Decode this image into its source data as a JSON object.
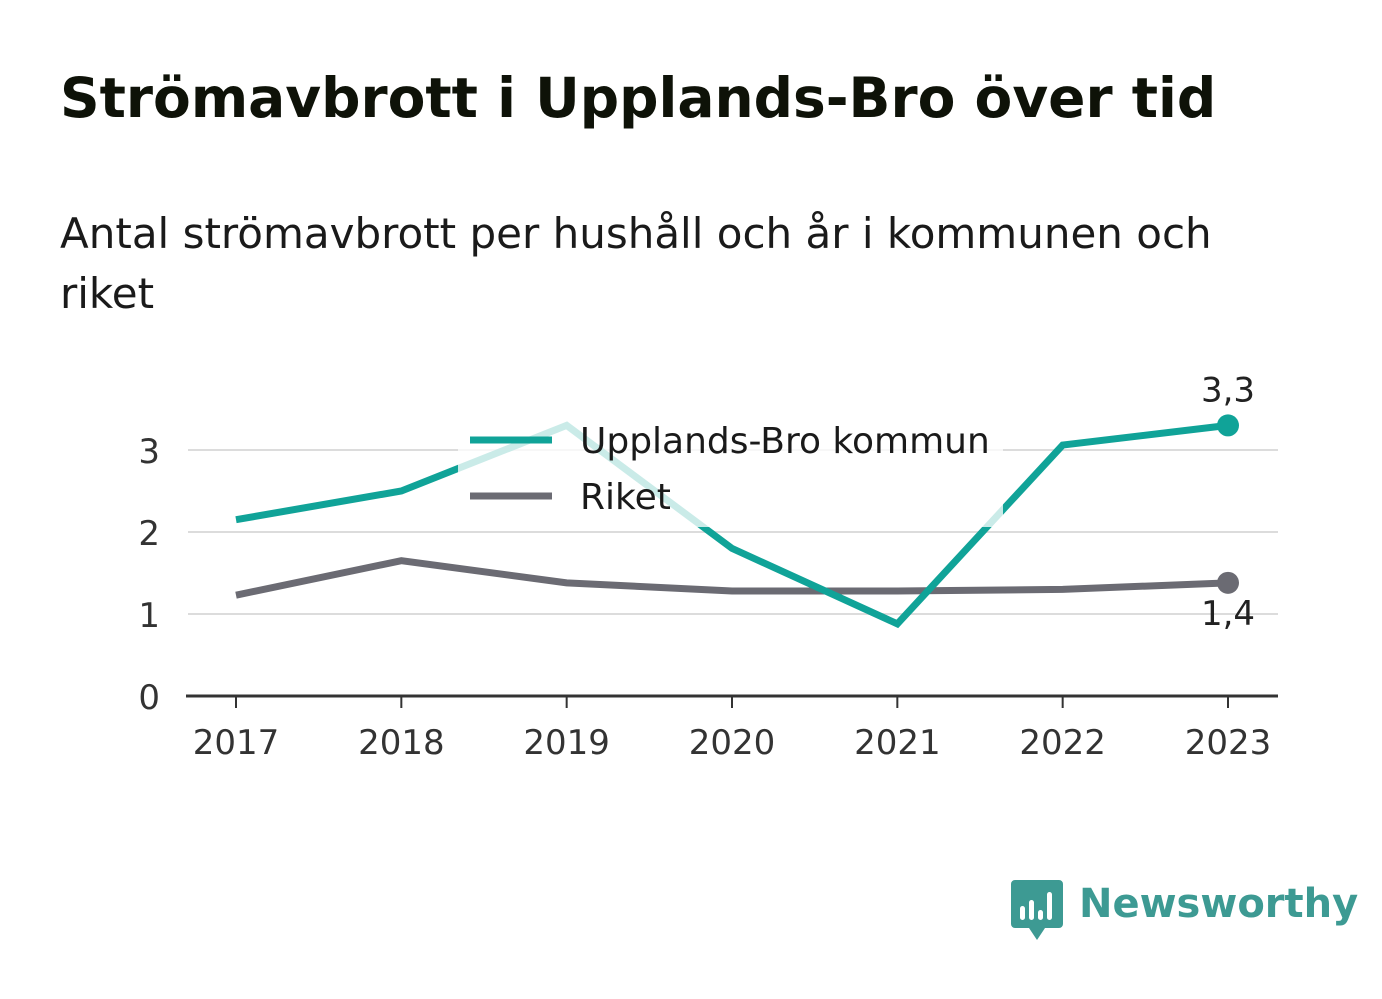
{
  "title": "Strömavbrott i Upplands-Bro över tid",
  "subtitle": "Antal strömavbrott per hushåll och år i kommunen och riket",
  "brand": {
    "name": "Newsworthy",
    "icon": "newsworthy-bar-chart-icon",
    "color": "#3d9a93"
  },
  "chart_data": {
    "type": "line",
    "x": [
      "2017",
      "2018",
      "2019",
      "2020",
      "2021",
      "2022",
      "2023"
    ],
    "yticks": [
      "0",
      "1",
      "2",
      "3"
    ],
    "ylim": [
      0,
      3.5
    ],
    "grid": true,
    "legend_position": "top-center",
    "series": [
      {
        "name": "Upplands-Bro kommun",
        "color": "#10a398",
        "values": [
          2.15,
          2.5,
          3.3,
          1.8,
          0.88,
          3.06,
          3.3
        ],
        "end_label": "3,3",
        "end_label_position": "above"
      },
      {
        "name": "Riket",
        "color": "#6b6b73",
        "values": [
          1.23,
          1.65,
          1.38,
          1.28,
          1.28,
          1.3,
          1.38
        ],
        "end_label": "1,4",
        "end_label_position": "below"
      }
    ]
  }
}
